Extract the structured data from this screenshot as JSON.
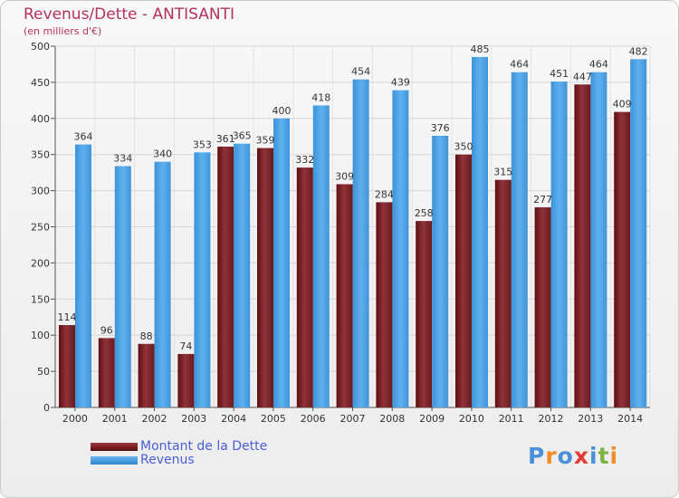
{
  "chart_data": {
    "type": "bar",
    "title": "Revenus/Dette - ANTISANTI",
    "subtitle": "(en milliers d'€)",
    "categories": [
      "2000",
      "2001",
      "2002",
      "2003",
      "2004",
      "2005",
      "2006",
      "2007",
      "2008",
      "2009",
      "2010",
      "2011",
      "2012",
      "2013",
      "2014"
    ],
    "series": [
      {
        "name": "Montant de la Dette",
        "color": "#7a2226",
        "values": [
          114,
          96,
          88,
          74,
          361,
          359,
          332,
          309,
          284,
          258,
          350,
          315,
          277,
          447,
          409
        ]
      },
      {
        "name": "Revenus",
        "color": "#4fa3e3",
        "values": [
          364,
          334,
          340,
          353,
          365,
          400,
          418,
          454,
          439,
          376,
          485,
          464,
          451,
          464,
          482
        ]
      }
    ],
    "data_labels": {
      "Montant de la Dette": [
        "114",
        "96",
        "88",
        "74",
        "361",
        "359",
        "332",
        "309",
        "284",
        "258",
        "350",
        "315",
        "277",
        "447",
        "409"
      ],
      "Revenus": [
        "364",
        "334",
        "340",
        "353",
        "365",
        "400",
        "418",
        "454",
        "439",
        "376",
        "485",
        "464",
        "451",
        "464",
        "482"
      ]
    },
    "ylim": [
      0,
      500
    ],
    "yticks": [
      0,
      50,
      100,
      150,
      200,
      250,
      300,
      350,
      400,
      450,
      500
    ],
    "grid": true,
    "legend": "bottom-left"
  },
  "logo": {
    "letters": [
      "P",
      "r",
      "o",
      "x",
      "i",
      "t",
      "i"
    ],
    "colors": [
      "#4a90d9",
      "#f28c28",
      "#4a90d9",
      "#e53935",
      "#4a90d9",
      "#7cb342",
      "#f28c28"
    ]
  }
}
